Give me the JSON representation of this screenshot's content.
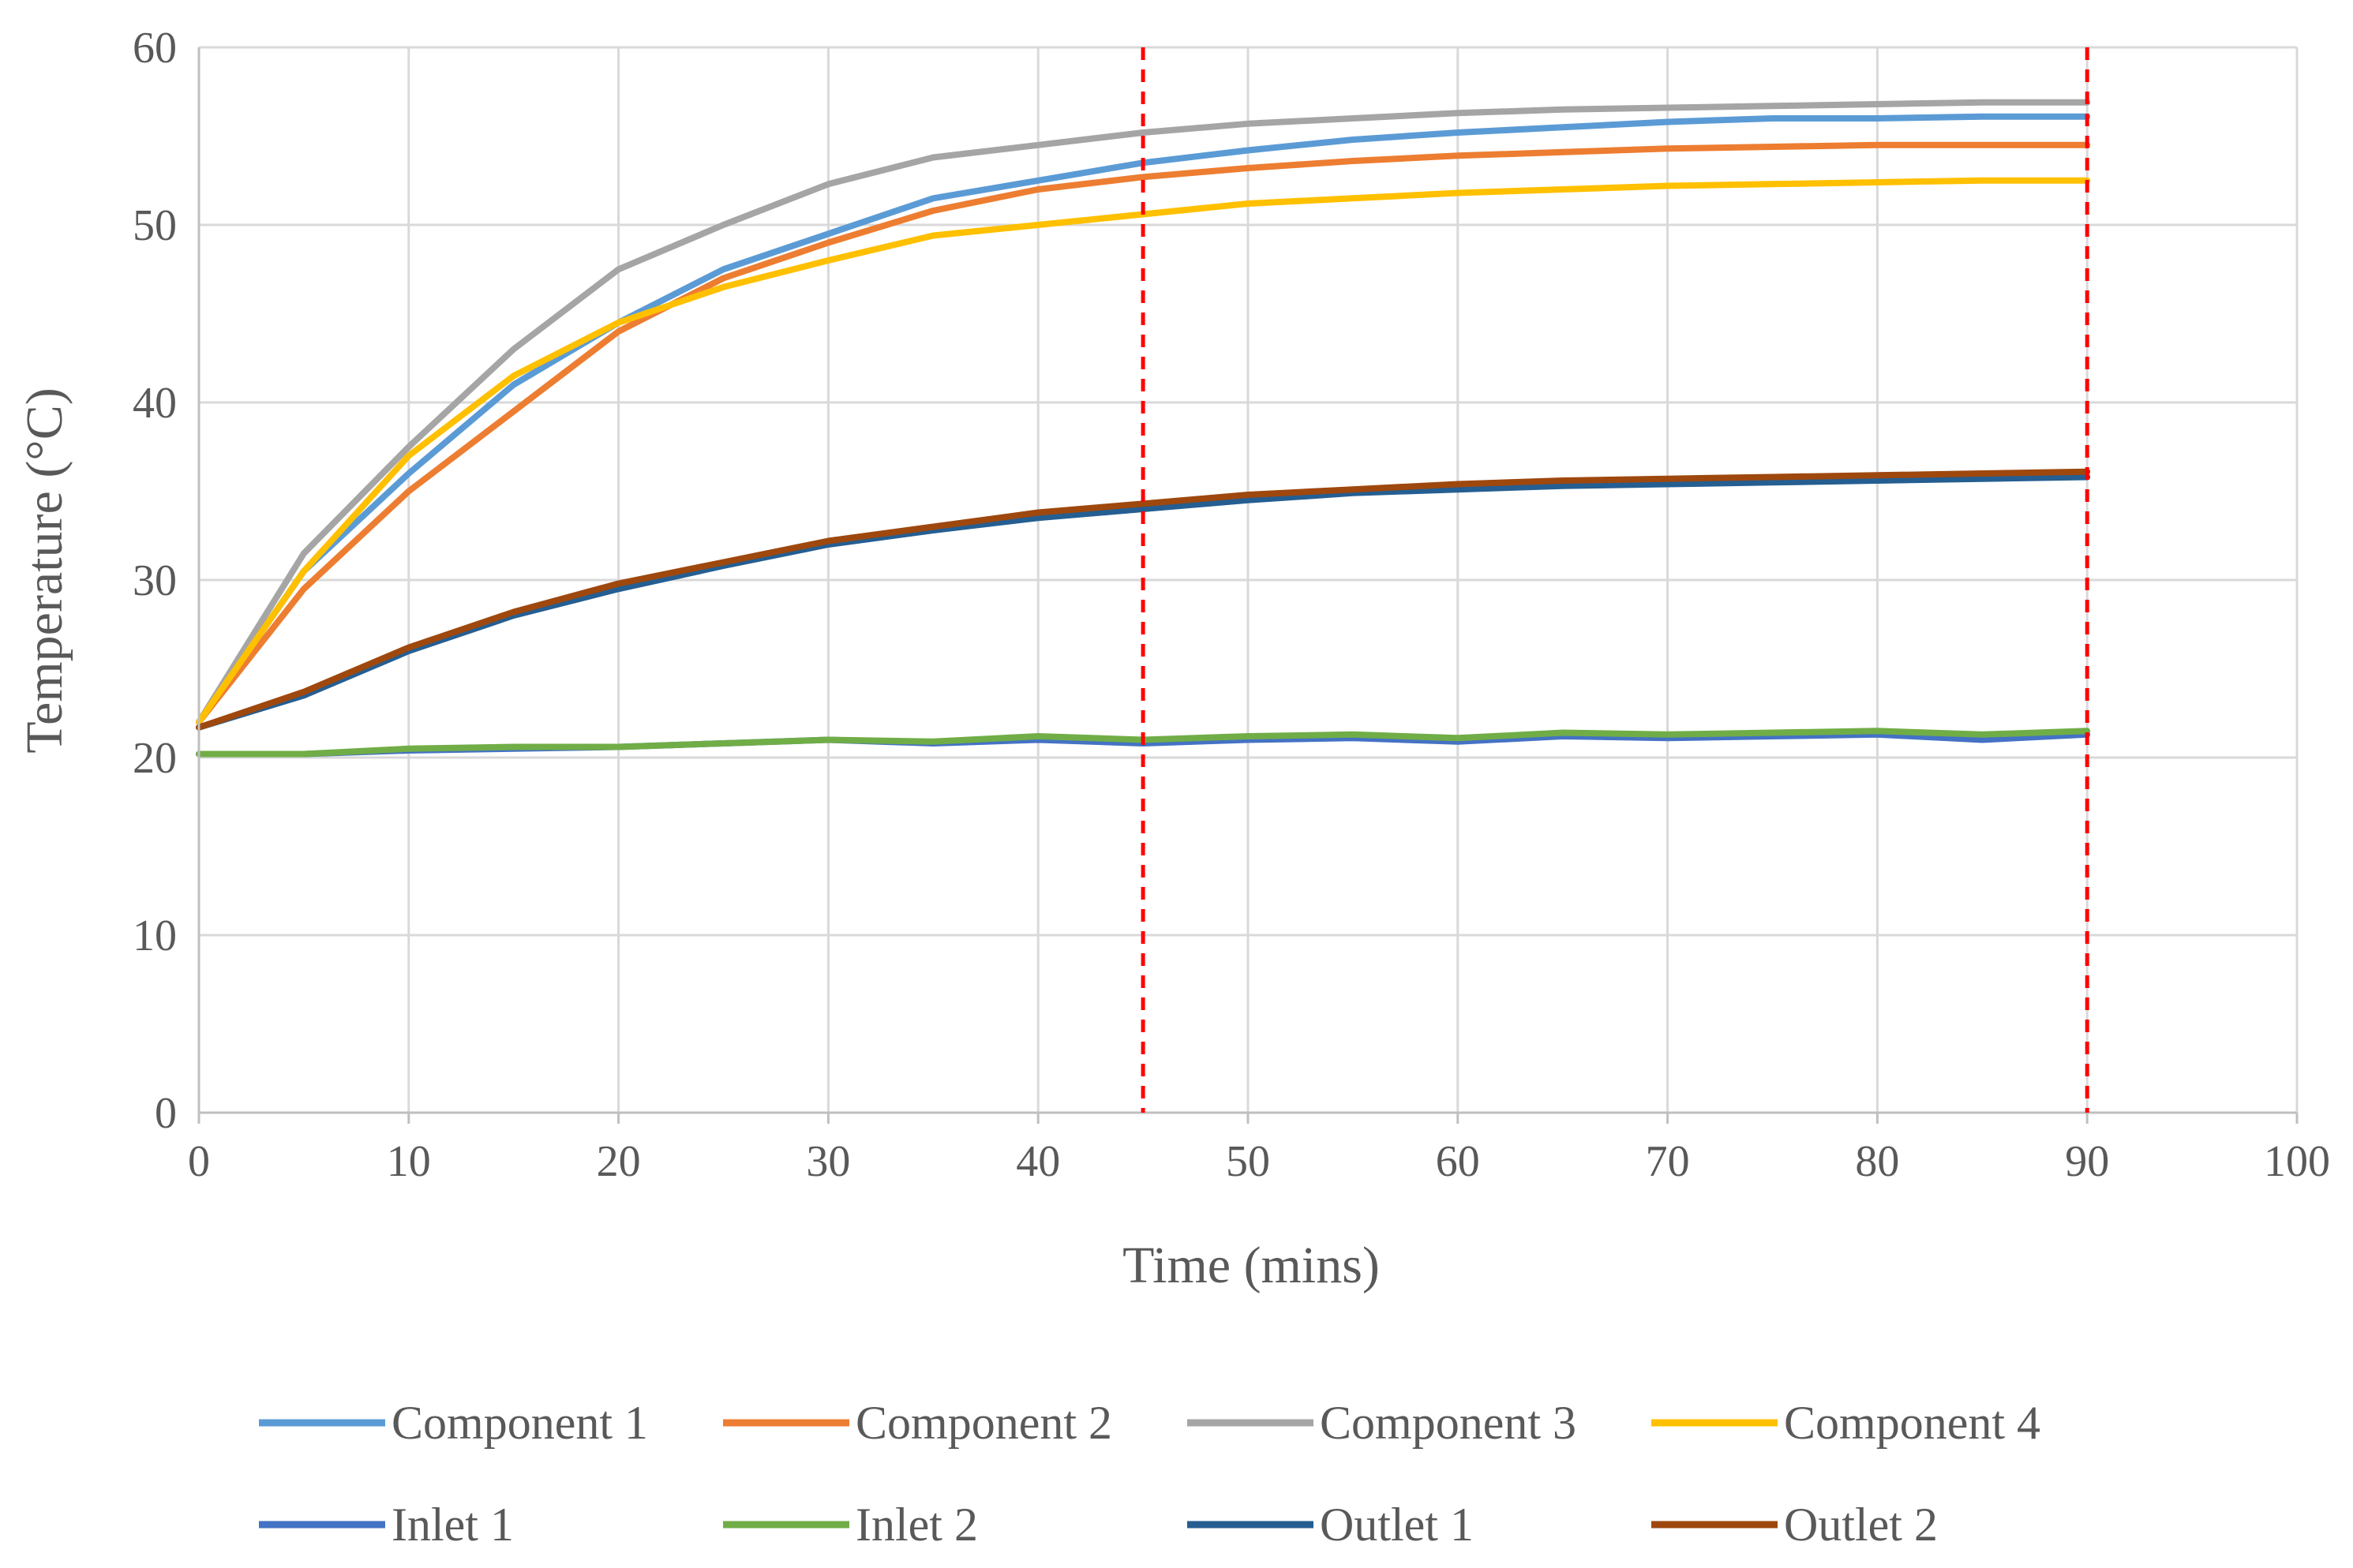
{
  "chart_data": {
    "type": "line",
    "title": "",
    "xlabel": "Time (mins)",
    "ylabel": "Temperature (°C)",
    "xlim": [
      0,
      100
    ],
    "ylim": [
      0,
      60
    ],
    "xticks": [
      "0",
      "10",
      "20",
      "30",
      "40",
      "50",
      "60",
      "70",
      "80",
      "90",
      "100"
    ],
    "yticks": [
      "0",
      "10",
      "20",
      "30",
      "40",
      "50",
      "60"
    ],
    "grid": true,
    "legend_position": "bottom",
    "reference_lines": [
      {
        "axis": "x",
        "value": 45,
        "style": "dashed",
        "color": "#ff0000"
      },
      {
        "axis": "x",
        "value": 90,
        "style": "dashed",
        "color": "#ff0000"
      }
    ],
    "x": [
      0,
      5,
      10,
      15,
      20,
      25,
      30,
      35,
      40,
      45,
      50,
      55,
      60,
      65,
      70,
      75,
      80,
      85,
      90
    ],
    "series": [
      {
        "name": "Component 1",
        "color": "#5b9bd5",
        "values": [
          22.0,
          30.5,
          36.0,
          41.0,
          44.5,
          47.5,
          49.5,
          51.5,
          52.5,
          53.5,
          54.2,
          54.8,
          55.2,
          55.5,
          55.8,
          56.0,
          56.0,
          56.1,
          56.1
        ]
      },
      {
        "name": "Component 2",
        "color": "#ed7d31",
        "values": [
          22.0,
          29.5,
          35.0,
          39.5,
          44.0,
          47.0,
          49.0,
          50.8,
          52.0,
          52.7,
          53.2,
          53.6,
          53.9,
          54.1,
          54.3,
          54.4,
          54.5,
          54.5,
          54.5
        ]
      },
      {
        "name": "Component 3",
        "color": "#a5a5a5",
        "values": [
          22.0,
          31.5,
          37.5,
          43.0,
          47.5,
          50.0,
          52.3,
          53.8,
          54.5,
          55.2,
          55.7,
          56.0,
          56.3,
          56.5,
          56.6,
          56.7,
          56.8,
          56.9,
          56.9
        ]
      },
      {
        "name": "Component 4",
        "color": "#ffc000",
        "values": [
          22.0,
          30.5,
          37.0,
          41.5,
          44.5,
          46.5,
          48.0,
          49.4,
          50.0,
          50.6,
          51.2,
          51.5,
          51.8,
          52.0,
          52.2,
          52.3,
          52.4,
          52.5,
          52.5
        ]
      },
      {
        "name": "Inlet 1",
        "color": "#4472c4",
        "values": [
          20.2,
          20.2,
          20.4,
          20.5,
          20.6,
          20.8,
          21.0,
          20.8,
          21.0,
          20.8,
          21.0,
          21.1,
          20.9,
          21.2,
          21.1,
          21.2,
          21.3,
          21.0,
          21.3
        ]
      },
      {
        "name": "Inlet 2",
        "color": "#70ad47",
        "values": [
          20.2,
          20.2,
          20.5,
          20.6,
          20.6,
          20.8,
          21.0,
          20.9,
          21.2,
          21.0,
          21.2,
          21.3,
          21.1,
          21.4,
          21.3,
          21.4,
          21.5,
          21.3,
          21.5
        ]
      },
      {
        "name": "Outlet 1",
        "color": "#255e91",
        "values": [
          21.7,
          23.5,
          26.0,
          28.0,
          29.5,
          30.8,
          32.0,
          32.8,
          33.5,
          34.0,
          34.5,
          34.9,
          35.1,
          35.3,
          35.4,
          35.5,
          35.6,
          35.7,
          35.8
        ]
      },
      {
        "name": "Outlet 2",
        "color": "#9e480e",
        "values": [
          21.7,
          23.7,
          26.2,
          28.2,
          29.8,
          31.0,
          32.2,
          33.0,
          33.8,
          34.3,
          34.8,
          35.1,
          35.4,
          35.6,
          35.7,
          35.8,
          35.9,
          36.0,
          36.1
        ]
      }
    ]
  }
}
